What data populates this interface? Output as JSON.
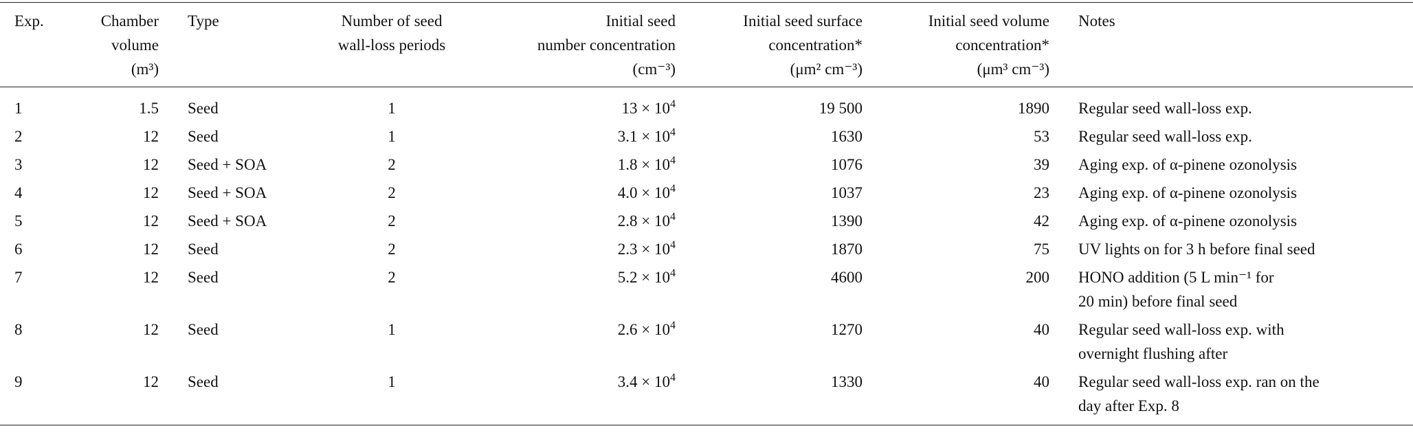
{
  "table": {
    "headers": [
      {
        "lines": [
          "Exp."
        ]
      },
      {
        "lines": [
          "Chamber",
          "volume",
          "(m³)"
        ]
      },
      {
        "lines": [
          "Type"
        ]
      },
      {
        "lines": [
          "Number of seed",
          "wall-loss periods"
        ]
      },
      {
        "lines": [
          "Initial seed",
          "number concentration",
          "(cm⁻³)"
        ]
      },
      {
        "lines": [
          "Initial seed surface",
          "concentration*",
          "(μm² cm⁻³)"
        ]
      },
      {
        "lines": [
          "Initial seed volume",
          "concentration*",
          "(μm³ cm⁻³)"
        ]
      },
      {
        "lines": [
          "Notes"
        ]
      }
    ],
    "rows": [
      {
        "exp": "1",
        "volume": "1.5",
        "type": "Seed",
        "periods": "1",
        "number_mantissa": "13 × 10",
        "number_exp": "4",
        "surface": "19 500",
        "seed_volume": "1890",
        "notes": [
          "Regular seed wall-loss exp."
        ]
      },
      {
        "exp": "2",
        "volume": "12",
        "type": "Seed",
        "periods": "1",
        "number_mantissa": "3.1 × 10",
        "number_exp": "4",
        "surface": "1630",
        "seed_volume": "53",
        "notes": [
          "Regular seed wall-loss exp."
        ]
      },
      {
        "exp": "3",
        "volume": "12",
        "type": "Seed + SOA",
        "periods": "2",
        "number_mantissa": "1.8 × 10",
        "number_exp": "4",
        "surface": "1076",
        "seed_volume": "39",
        "notes": [
          "Aging exp. of α-pinene ozonolysis"
        ]
      },
      {
        "exp": "4",
        "volume": "12",
        "type": "Seed + SOA",
        "periods": "2",
        "number_mantissa": "4.0 × 10",
        "number_exp": "4",
        "surface": "1037",
        "seed_volume": "23",
        "notes": [
          "Aging exp. of α-pinene ozonolysis"
        ]
      },
      {
        "exp": "5",
        "volume": "12",
        "type": "Seed + SOA",
        "periods": "2",
        "number_mantissa": "2.8 × 10",
        "number_exp": "4",
        "surface": "1390",
        "seed_volume": "42",
        "notes": [
          "Aging exp. of α-pinene ozonolysis"
        ]
      },
      {
        "exp": "6",
        "volume": "12",
        "type": "Seed",
        "periods": "2",
        "number_mantissa": "2.3 × 10",
        "number_exp": "4",
        "surface": "1870",
        "seed_volume": "75",
        "notes": [
          "UV lights on for 3 h before final seed"
        ]
      },
      {
        "exp": "7",
        "volume": "12",
        "type": "Seed",
        "periods": "2",
        "number_mantissa": "5.2 × 10",
        "number_exp": "4",
        "surface": "4600",
        "seed_volume": "200",
        "notes": [
          "HONO addition (5 L min⁻¹ for",
          "20 min) before final seed"
        ]
      },
      {
        "exp": "8",
        "volume": "12",
        "type": "Seed",
        "periods": "1",
        "number_mantissa": "2.6 × 10",
        "number_exp": "4",
        "surface": "1270",
        "seed_volume": "40",
        "notes": [
          "Regular seed wall-loss exp. with",
          "overnight flushing after"
        ]
      },
      {
        "exp": "9",
        "volume": "12",
        "type": "Seed",
        "periods": "1",
        "number_mantissa": "3.4 × 10",
        "number_exp": "4",
        "surface": "1330",
        "seed_volume": "40",
        "notes": [
          "Regular seed wall-loss exp. ran on the",
          "day after Exp. 8"
        ]
      }
    ]
  }
}
